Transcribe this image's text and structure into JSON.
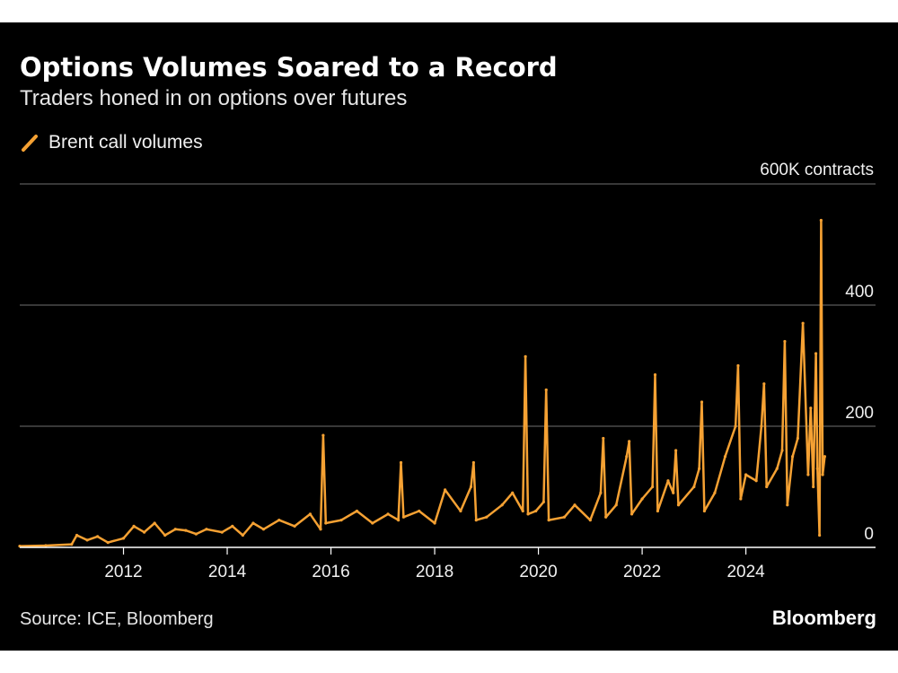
{
  "title": "Options Volumes Soared to a Record",
  "subtitle": "Traders honed in on options over futures",
  "source": "Source: ICE, Bloomberg",
  "brand": "Bloomberg",
  "colors": {
    "background": "#000000",
    "series": "#f5a133",
    "grid": "#5a5a5a",
    "axis": "#ffffff"
  },
  "legend_icon": "slash-icon",
  "chart_data": {
    "type": "line",
    "title": "Options Volumes Soared to a Record",
    "subtitle": "Traders honed in on options over futures",
    "ylabel": "600K contracts",
    "y_unit_label": "600K contracts",
    "y_ticks": [
      0,
      200,
      400
    ],
    "ylim": [
      0,
      600
    ],
    "x_ticks": [
      "2012",
      "2014",
      "2016",
      "2018",
      "2020",
      "2022",
      "2024"
    ],
    "xlim": [
      2010.0,
      2026.5
    ],
    "grid": true,
    "legend_position": "top-left",
    "series": [
      {
        "name": "Brent call volumes",
        "x": [
          2010.0,
          2010.5,
          2011.0,
          2011.1,
          2011.3,
          2011.5,
          2011.7,
          2012.0,
          2012.2,
          2012.4,
          2012.6,
          2012.8,
          2013.0,
          2013.2,
          2013.4,
          2013.6,
          2013.9,
          2014.1,
          2014.3,
          2014.5,
          2014.7,
          2015.0,
          2015.3,
          2015.6,
          2015.8,
          2015.85,
          2015.9,
          2016.2,
          2016.5,
          2016.8,
          2017.1,
          2017.3,
          2017.35,
          2017.4,
          2017.7,
          2018.0,
          2018.2,
          2018.5,
          2018.7,
          2018.75,
          2018.8,
          2019.0,
          2019.3,
          2019.5,
          2019.7,
          2019.75,
          2019.8,
          2019.95,
          2020.1,
          2020.15,
          2020.2,
          2020.5,
          2020.7,
          2021.0,
          2021.2,
          2021.25,
          2021.3,
          2021.5,
          2021.7,
          2021.75,
          2021.8,
          2022.0,
          2022.2,
          2022.25,
          2022.3,
          2022.5,
          2022.6,
          2022.65,
          2022.7,
          2023.0,
          2023.1,
          2023.15,
          2023.2,
          2023.4,
          2023.6,
          2023.8,
          2023.85,
          2023.9,
          2024.0,
          2024.2,
          2024.3,
          2024.35,
          2024.4,
          2024.6,
          2024.7,
          2024.75,
          2024.8,
          2024.9,
          2025.0,
          2025.1,
          2025.2,
          2025.25,
          2025.3,
          2025.35,
          2025.38,
          2025.42,
          2025.45,
          2025.48,
          2025.52
        ],
        "values": [
          2,
          3,
          5,
          20,
          12,
          18,
          8,
          15,
          35,
          25,
          40,
          20,
          30,
          28,
          22,
          30,
          25,
          35,
          20,
          40,
          30,
          45,
          35,
          55,
          30,
          185,
          40,
          45,
          60,
          40,
          55,
          45,
          140,
          50,
          60,
          40,
          95,
          60,
          100,
          140,
          45,
          50,
          70,
          90,
          60,
          315,
          55,
          60,
          75,
          260,
          45,
          50,
          70,
          45,
          90,
          180,
          50,
          70,
          150,
          175,
          55,
          80,
          100,
          285,
          60,
          110,
          90,
          160,
          70,
          100,
          130,
          240,
          60,
          90,
          150,
          200,
          300,
          80,
          120,
          110,
          200,
          270,
          100,
          130,
          160,
          340,
          70,
          150,
          180,
          370,
          120,
          230,
          100,
          320,
          130,
          20,
          540,
          120,
          150
        ]
      }
    ]
  }
}
